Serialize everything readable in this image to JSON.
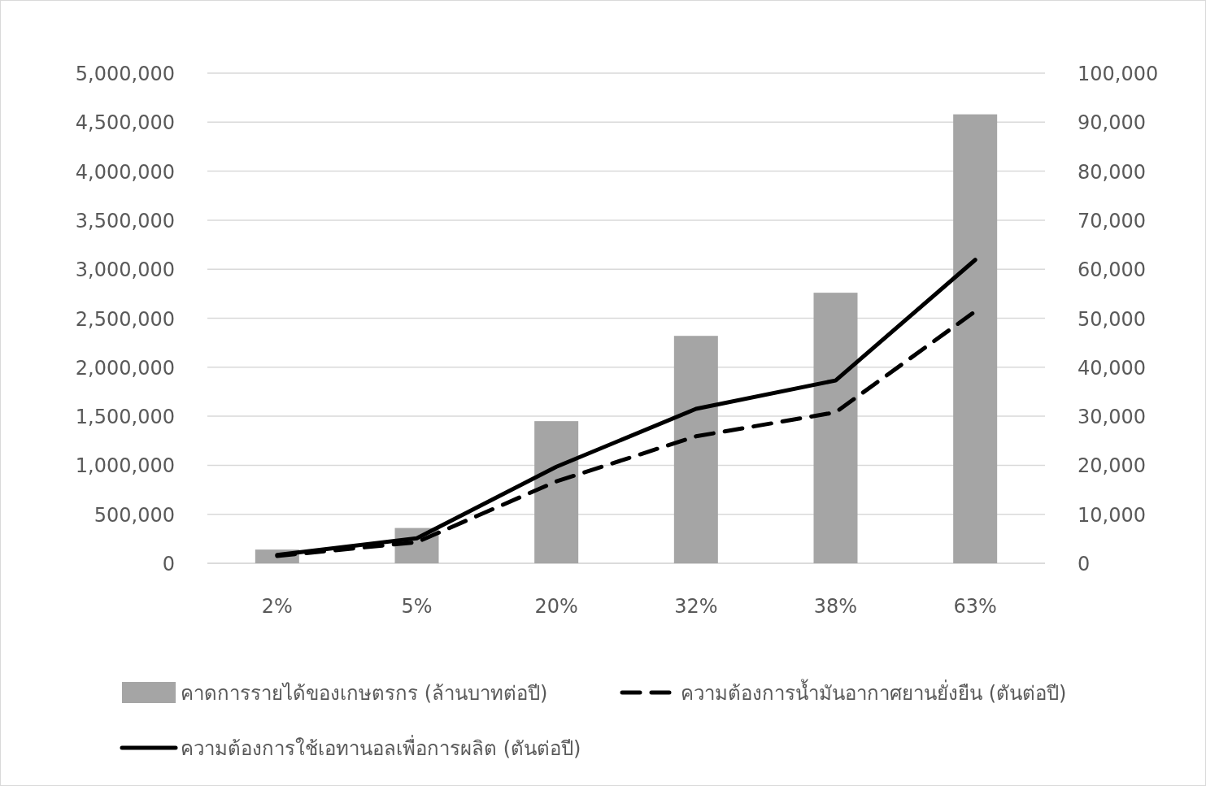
{
  "chart_data": {
    "type": "bar",
    "categories": [
      "2%",
      "5%",
      "20%",
      "32%",
      "38%",
      "63%"
    ],
    "series": [
      {
        "name": "คาดการรายได้ของเกษตรกร (ล้านบาทต่อปี)",
        "color": "#a5a5a5",
        "values": [
          140000,
          360000,
          1450000,
          2320000,
          2760000,
          4580000
        ]
      },
      {
        "name": "ความต้องการน้ำมันอากาศยานยั่งยืน (ตันต่อปี)",
        "type": "line",
        "axis": "y2",
        "line_style": "dashed",
        "color": "#000000",
        "values": [
          1500,
          4300,
          16700,
          25900,
          30800,
          51400
        ]
      },
      {
        "name": "ความต้องการใช้เอทานอลเพื่อการผลิต (ตันต่อปี)",
        "type": "line",
        "axis": "y2",
        "line_style": "solid",
        "color": "#000000",
        "values": [
          1700,
          5100,
          19700,
          31500,
          37300,
          61900
        ]
      }
    ],
    "ylim": [
      0,
      5000000
    ],
    "yticks": [
      {
        "value": 0,
        "label": "0"
      },
      {
        "value": 500000,
        "label": "500,000"
      },
      {
        "value": 1000000,
        "label": "1,000,000"
      },
      {
        "value": 1500000,
        "label": "1,500,000"
      },
      {
        "value": 2000000,
        "label": "2,000,000"
      },
      {
        "value": 2500000,
        "label": "2,500,000"
      },
      {
        "value": 3000000,
        "label": "3,000,000"
      },
      {
        "value": 3500000,
        "label": "3,500,000"
      },
      {
        "value": 4000000,
        "label": "4,000,000"
      },
      {
        "value": 4500000,
        "label": "4,500,000"
      },
      {
        "value": 5000000,
        "label": "5,000,000"
      }
    ],
    "y2lim": [
      0,
      100000
    ],
    "y2ticks": [
      {
        "value": 0,
        "label": "0"
      },
      {
        "value": 10000,
        "label": "10,000"
      },
      {
        "value": 20000,
        "label": "20,000"
      },
      {
        "value": 30000,
        "label": "30,000"
      },
      {
        "value": 40000,
        "label": "40,000"
      },
      {
        "value": 50000,
        "label": "50,000"
      },
      {
        "value": 60000,
        "label": "60,000"
      },
      {
        "value": 70000,
        "label": "70,000"
      },
      {
        "value": 80000,
        "label": "80,000"
      },
      {
        "value": 90000,
        "label": "90,000"
      },
      {
        "value": 100000,
        "label": "100,000"
      }
    ],
    "grid": "y",
    "legend": "bottom"
  }
}
